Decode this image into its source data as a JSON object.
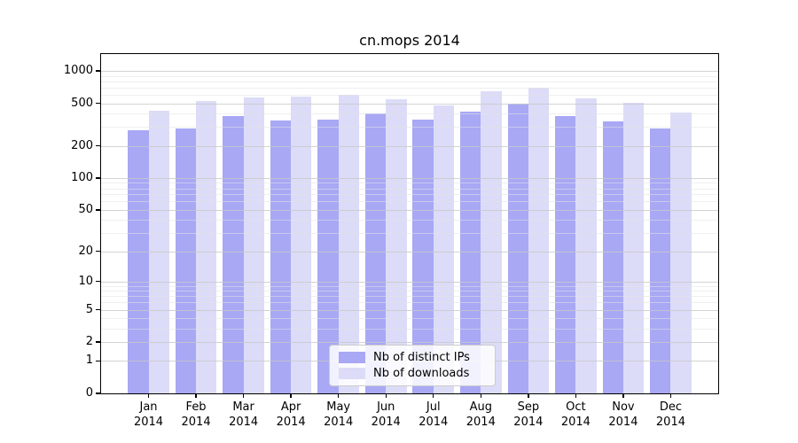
{
  "chart_data": {
    "type": "bar",
    "title": "cn.mops 2014",
    "scale": "log1p",
    "grid": true,
    "legend_position": "lower center",
    "categories": [
      "Jan",
      "Feb",
      "Mar",
      "Apr",
      "May",
      "Jun",
      "Jul",
      "Aug",
      "Sep",
      "Oct",
      "Nov",
      "Dec"
    ],
    "year": "2014",
    "series": [
      {
        "name": "Nb of distinct IPs",
        "color": "#a8a8f5",
        "values": [
          280,
          293,
          380,
          346,
          353,
          406,
          349,
          416,
          495,
          378,
          342,
          293
        ]
      },
      {
        "name": "Nb of downloads",
        "color": "#dcdcf8",
        "values": [
          425,
          520,
          565,
          573,
          595,
          546,
          478,
          650,
          697,
          561,
          503,
          411
        ]
      }
    ],
    "ylim": [
      0,
      1437
    ],
    "yticks_major": [
      0,
      1,
      2,
      5,
      10,
      20,
      50,
      100,
      200,
      500,
      1000
    ],
    "yticks_minor": [
      3,
      4,
      6,
      7,
      8,
      9,
      30,
      40,
      60,
      70,
      80,
      90,
      300,
      400,
      600,
      700,
      800,
      900
    ],
    "xlabel": "",
    "ylabel": ""
  },
  "colors": {
    "background": "#ffffff",
    "axis": "#000000",
    "grid_major": "#c8c8c8",
    "grid_minor": "#e2e2e2",
    "legend_border": "#cccccc"
  }
}
